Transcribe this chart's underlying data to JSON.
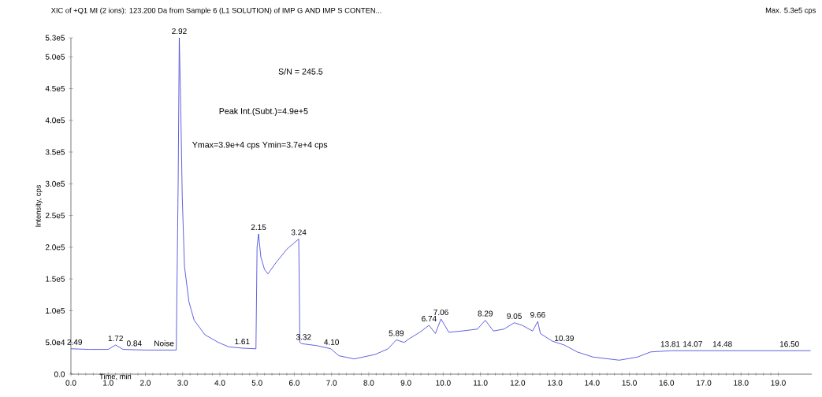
{
  "chart_data": {
    "type": "line",
    "title": "XIC of +Q1 MI (2 ions): 123.200 Da from Sample 6 (L1 SOLUTION) of IMP G AND IMP S CONTEN...",
    "subtitle": "Max. 5.3e5 cps",
    "xlabel": "Time, min",
    "ylabel": "Intensity, cps",
    "xlim": [
      0,
      19.9
    ],
    "ylim": [
      0,
      530000
    ],
    "xticks": [
      {
        "value": 0,
        "label": "0.0"
      },
      {
        "value": 1,
        "label": "1.0"
      },
      {
        "value": 2,
        "label": "2.0"
      },
      {
        "value": 3,
        "label": "3.0"
      },
      {
        "value": 4,
        "label": "4.0"
      },
      {
        "value": 5,
        "label": "5.0"
      },
      {
        "value": 6,
        "label": "6.0"
      },
      {
        "value": 7,
        "label": "7.0"
      },
      {
        "value": 8,
        "label": "8.0"
      },
      {
        "value": 9,
        "label": "9.0"
      },
      {
        "value": 10,
        "label": "10.0"
      },
      {
        "value": 11,
        "label": "11.0"
      },
      {
        "value": 12,
        "label": "12.0"
      },
      {
        "value": 13,
        "label": "13.0"
      },
      {
        "value": 14,
        "label": "14.0"
      },
      {
        "value": 15,
        "label": "15.0"
      },
      {
        "value": 16,
        "label": "16.0"
      },
      {
        "value": 17,
        "label": "17.0"
      },
      {
        "value": 18,
        "label": "18.0"
      },
      {
        "value": 19,
        "label": "19.0"
      }
    ],
    "yticks": [
      {
        "value": 0,
        "label": "0.0"
      },
      {
        "value": 50000,
        "label": "5.0e4"
      },
      {
        "value": 100000,
        "label": "1.0e5"
      },
      {
        "value": 150000,
        "label": "1.5e5"
      },
      {
        "value": 200000,
        "label": "2.0e5"
      },
      {
        "value": 250000,
        "label": "2.5e5"
      },
      {
        "value": 300000,
        "label": "3.0e5"
      },
      {
        "value": 350000,
        "label": "3.5e5"
      },
      {
        "value": 400000,
        "label": "4.0e5"
      },
      {
        "value": 450000,
        "label": "4.5e5"
      },
      {
        "value": 500000,
        "label": "5.0e5"
      },
      {
        "value": 530000,
        "label": "5.3e5"
      }
    ],
    "grid": false,
    "series": [
      {
        "color": "#3a3ad8",
        "x": [
          0,
          0.5,
          1.0,
          1.2,
          1.4,
          2.0,
          2.5,
          2.83,
          2.88,
          2.91,
          2.95,
          2.99,
          3.05,
          3.17,
          3.31,
          3.6,
          3.96,
          4.24,
          4.6,
          4.97,
          5.0,
          5.04,
          5.1,
          5.2,
          5.29,
          5.5,
          5.8,
          6.12,
          6.15,
          6.2,
          6.6,
          6.98,
          7.2,
          7.61,
          8.17,
          8.52,
          8.74,
          8.95,
          9.09,
          9.37,
          9.62,
          9.79,
          9.94,
          10.15,
          10.5,
          10.92,
          11.13,
          11.35,
          11.63,
          11.91,
          12.12,
          12.4,
          12.54,
          12.61,
          12.93,
          13.25,
          13.6,
          14.02,
          14.73,
          15.22,
          15.57,
          16.14,
          17.0,
          18.0,
          19.87
        ],
        "values": [
          40000,
          39000,
          39000,
          46000,
          39000,
          38000,
          38000,
          38000,
          300000,
          530000,
          420000,
          280000,
          170000,
          114000,
          85000,
          62000,
          50000,
          43000,
          41000,
          40000,
          200000,
          221000,
          185000,
          165000,
          158000,
          175000,
          197000,
          213000,
          50000,
          48000,
          45000,
          40000,
          29000,
          24000,
          31000,
          40000,
          54000,
          50000,
          56000,
          66000,
          77000,
          64000,
          87000,
          66000,
          68000,
          71000,
          85000,
          68000,
          71000,
          81000,
          77000,
          68000,
          83000,
          64000,
          52000,
          46000,
          35000,
          27000,
          22000,
          27000,
          35000,
          37000,
          37000,
          37000,
          37000
        ]
      }
    ],
    "annotations": [
      "S/N = 245.5",
      "Peak Int.(Subt.)=4.9e+5",
      "Ymax=3.9e+4 cps  Ymin=3.7e+4 cps",
      {
        "text": "2.92",
        "x": 2.91,
        "y": 530000
      },
      {
        "text": "2.15",
        "x": 5.04,
        "y": 221000
      },
      {
        "text": "3.24",
        "x": 6.12,
        "y": 213000
      },
      {
        "text": "2.49",
        "x": 0.1,
        "y": 40000
      },
      {
        "text": "1.72",
        "x": 1.2,
        "y": 46000
      },
      {
        "text": "0.84",
        "x": 1.7,
        "y": 38000
      },
      {
        "text": "Noise",
        "x": 2.5,
        "y": 38000
      },
      {
        "text": "1.61",
        "x": 4.6,
        "y": 41000
      },
      {
        "text": "3.32",
        "x": 6.25,
        "y": 48000
      },
      {
        "text": "4.10",
        "x": 7.0,
        "y": 40000
      },
      {
        "text": "5.89",
        "x": 8.74,
        "y": 54000
      },
      {
        "text": "6.74",
        "x": 9.62,
        "y": 77000
      },
      {
        "text": "7.06",
        "x": 9.94,
        "y": 87000
      },
      {
        "text": "8.29",
        "x": 11.13,
        "y": 85000
      },
      {
        "text": "9.05",
        "x": 11.91,
        "y": 81000
      },
      {
        "text": "9.66",
        "x": 12.54,
        "y": 83000
      },
      {
        "text": "10.39",
        "x": 13.25,
        "y": 46000
      },
      {
        "text": "13.81",
        "x": 16.1,
        "y": 37000
      },
      {
        "text": "14.07",
        "x": 16.7,
        "y": 37000
      },
      {
        "text": "14.48",
        "x": 17.5,
        "y": 37000
      },
      {
        "text": "16.50",
        "x": 19.3,
        "y": 37000
      }
    ]
  }
}
